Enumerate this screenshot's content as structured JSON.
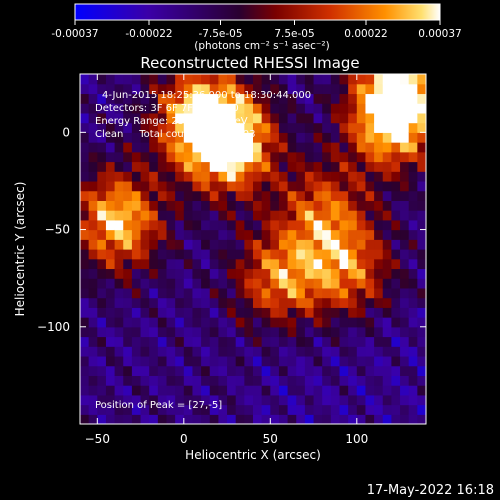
{
  "colorbar": {
    "tick_labels": [
      "-0.00037",
      "-0.00022",
      "-7.5e-05",
      "7.5e-05",
      "0.00022",
      "0.00037"
    ],
    "tick_values": [
      -0.00037,
      -0.00022,
      -7.5e-05,
      7.5e-05,
      0.00022,
      0.00037
    ],
    "range": [
      -0.00037,
      0.00037
    ],
    "units_label": "(photons cm⁻² s⁻¹ asec⁻²)",
    "colors": [
      "#0000ff",
      "#3a00a8",
      "#2a0030",
      "#7a0000",
      "#d03000",
      "#ff9000",
      "#ffe070",
      "#ffffff"
    ]
  },
  "chart_data": {
    "type": "heatmap",
    "title": "Reconstructed RHESSI Image",
    "xlabel": "Heliocentric X (arcsec)",
    "ylabel": "Heliocentric Y (arcsec)",
    "x_ticks": [
      -50,
      0,
      50,
      100
    ],
    "y_ticks": [
      0,
      -50,
      -100
    ],
    "xlim": [
      -60,
      140
    ],
    "ylim": [
      -150,
      30
    ],
    "annotations": [
      "4-Jun-2015 18:25:36.000 to 18:30:44.000",
      "Detectors: 3F 6F 7F 9F, Att 0",
      "Energy Range: 25.0 - 50.0 keV",
      "Clean     Total counts: 4.68E+03"
    ],
    "peak_label": "Position of Peak = [27,-5]",
    "peak_position": [
      27,
      -5
    ],
    "bright_regions": [
      {
        "x": 27,
        "y": -5,
        "level": 1.0
      },
      {
        "x": 8,
        "y": 8,
        "level": 0.8
      },
      {
        "x": -38,
        "y": -45,
        "level": 0.85
      },
      {
        "x": 120,
        "y": 5,
        "level": 0.8
      },
      {
        "x": 125,
        "y": 25,
        "level": 0.7
      },
      {
        "x": 55,
        "y": -75,
        "level": 0.65
      },
      {
        "x": 95,
        "y": -70,
        "level": 0.6
      },
      {
        "x": 80,
        "y": -40,
        "level": 0.55
      }
    ]
  },
  "footer": {
    "timestamp": "17-May-2022 16:18"
  }
}
